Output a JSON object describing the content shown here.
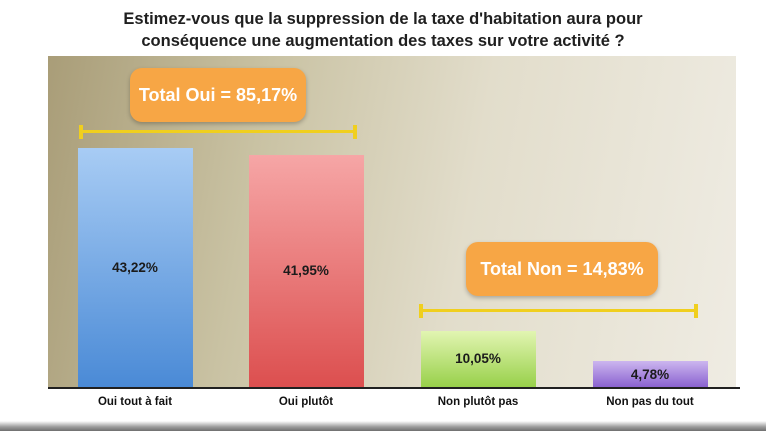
{
  "chart_data": {
    "type": "bar",
    "title": "Estimez-vous que la suppression de la taxe d'habitation aura pour conséquence une augmentation des taxes sur votre activité ?",
    "title_line1": "Estimez-vous que la suppression de la taxe d'habitation aura pour",
    "title_line2": "conséquence une augmentation des taxes sur votre activité ?",
    "categories": [
      "Oui tout à fait",
      "Oui plutôt",
      "Non plutôt pas",
      "Non pas du tout"
    ],
    "values": [
      43.22,
      41.95,
      10.05,
      4.78
    ],
    "value_labels": [
      "43,22%",
      "41,95%",
      "10,05%",
      "4,78%"
    ],
    "colors": [
      [
        "#a8ccf4",
        "#4a8ad6"
      ],
      [
        "#f6a6a6",
        "#dc4f4f"
      ],
      [
        "#e2f5b2",
        "#98d04a"
      ],
      [
        "#ccb6ef",
        "#8a62d0"
      ]
    ],
    "ylim": [
      0,
      45
    ],
    "annotations": [
      {
        "text": "Total Oui = 85,17%",
        "spans": [
          0,
          1
        ]
      },
      {
        "text": "Total Non = 14,83%",
        "spans": [
          2,
          3
        ]
      }
    ],
    "accent_color": "#f7a645",
    "bracket_color": "#f0cf1e"
  }
}
